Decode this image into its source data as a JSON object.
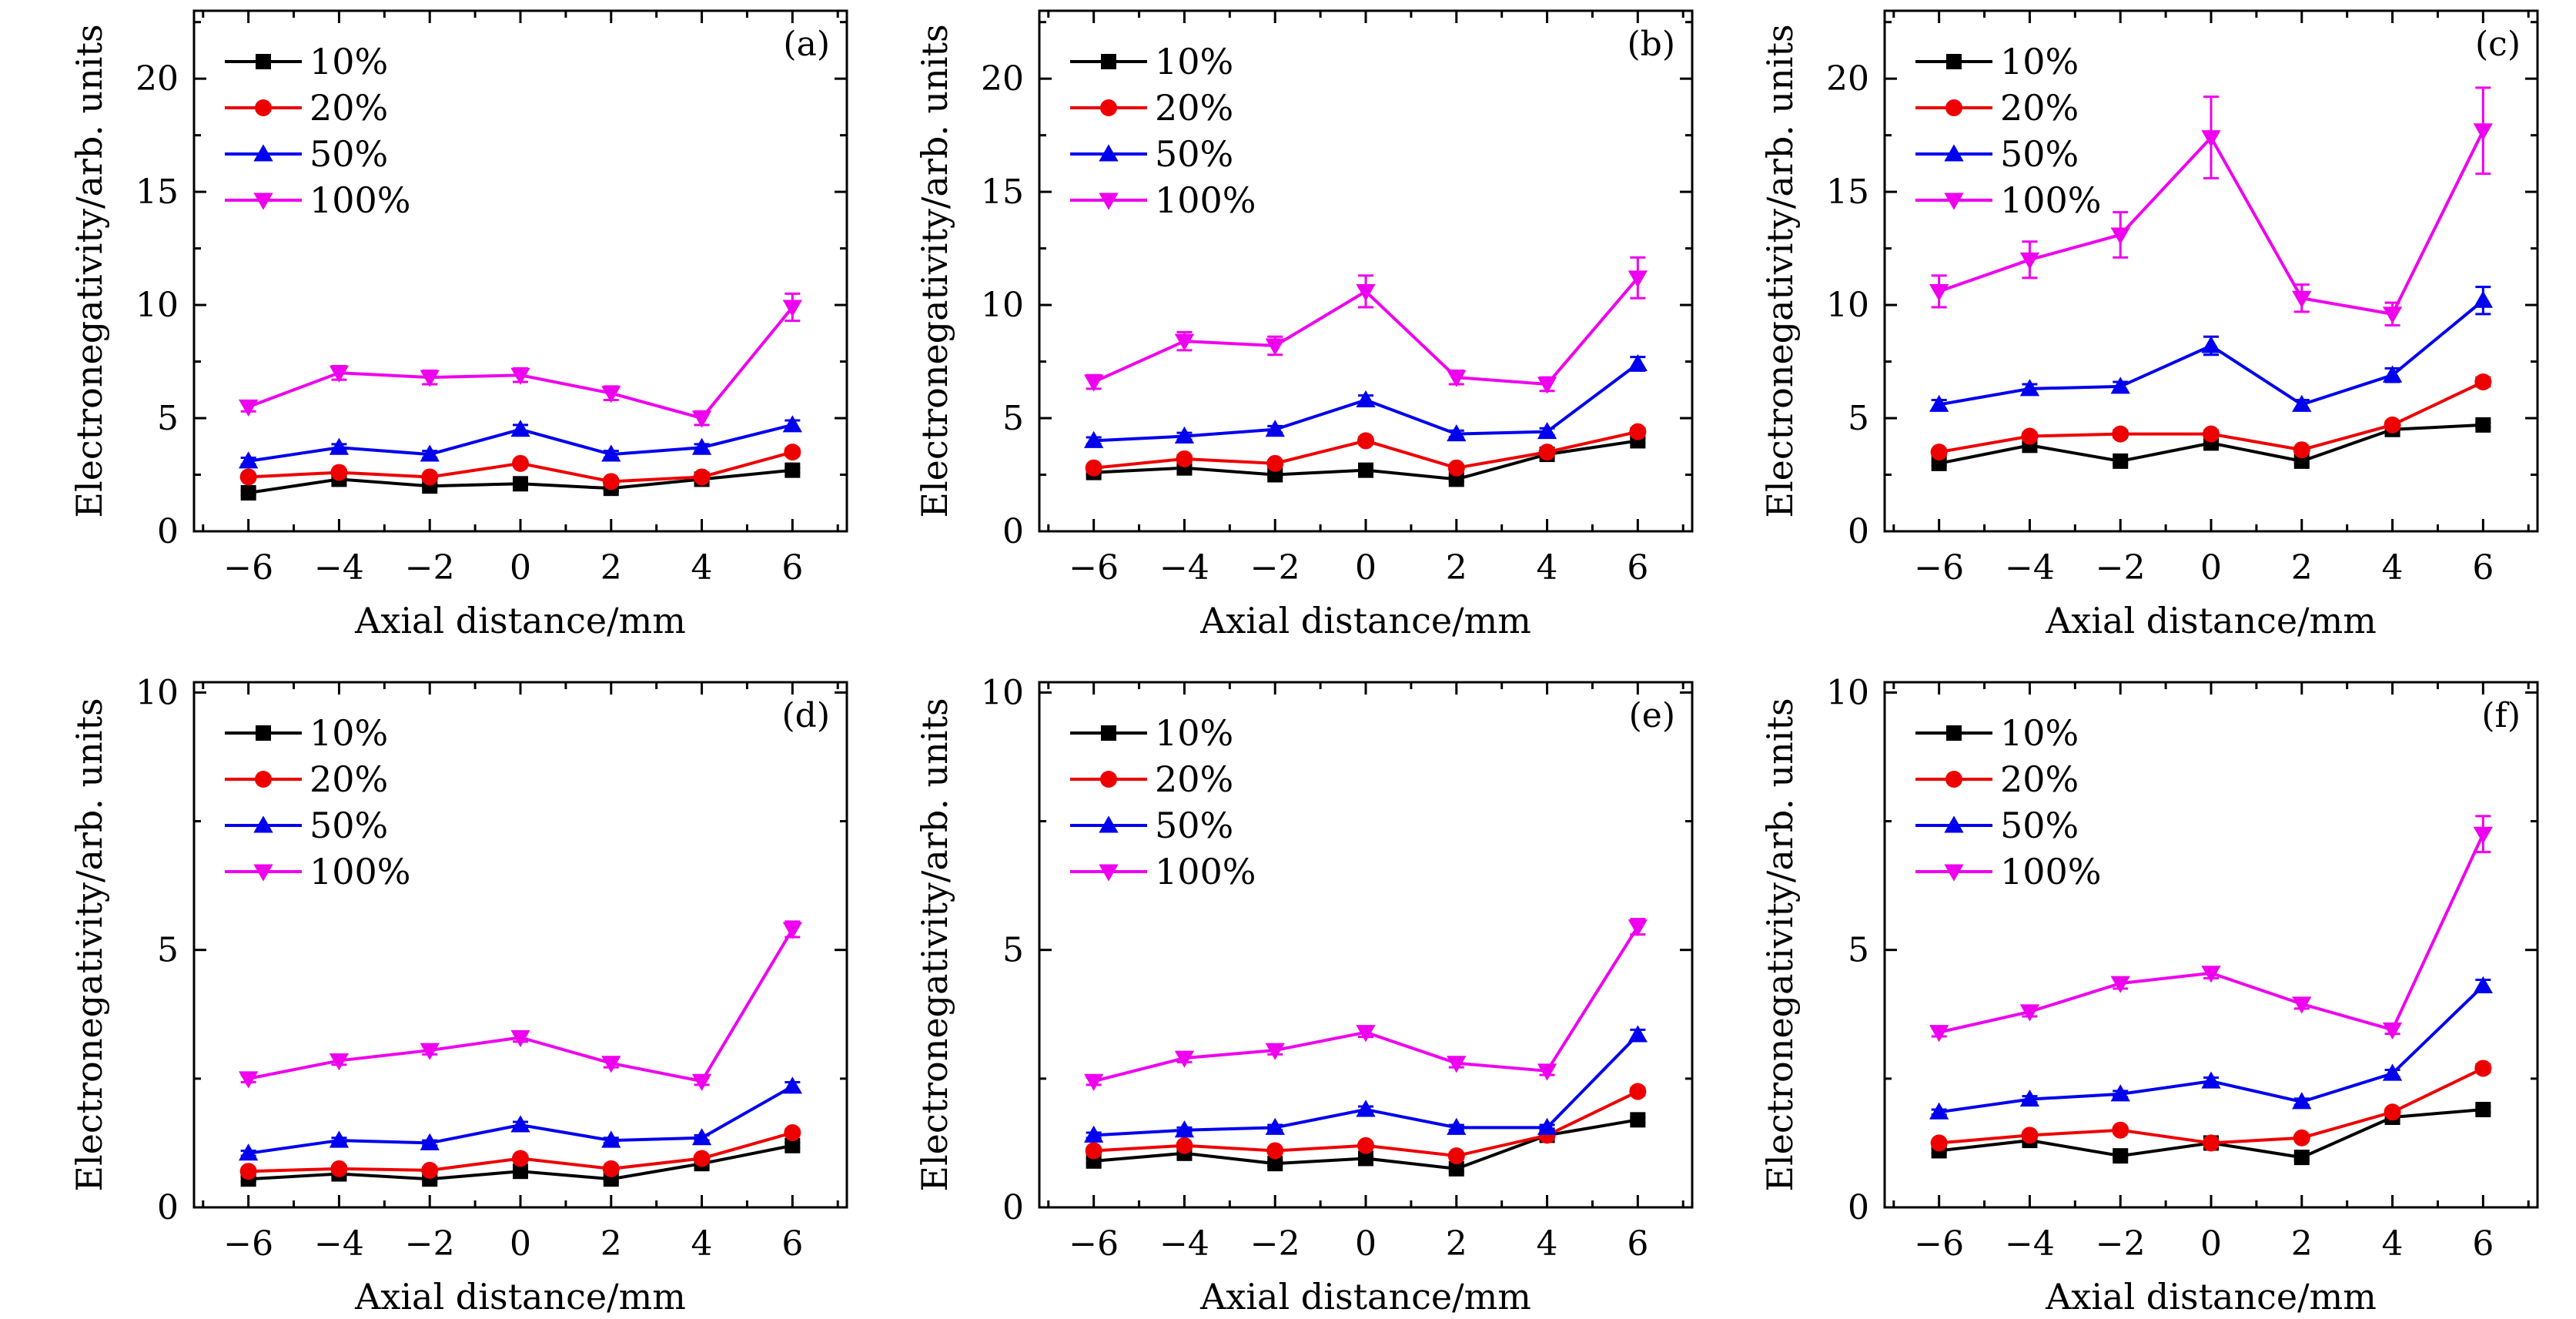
{
  "chart_data": [
    {
      "type": "line",
      "panel_label": "(a)",
      "xlabel": "Axial distance/mm",
      "ylabel": "Electronegativity/arb. units",
      "xlim": [
        -7.2,
        7.2
      ],
      "ylim": [
        0,
        23
      ],
      "x_ticks": [
        -6,
        -4,
        -2,
        0,
        2,
        4,
        6
      ],
      "y_ticks": [
        0,
        5,
        10,
        15,
        20
      ],
      "legend_position": "top-left",
      "x": [
        -6,
        -4,
        -2,
        0,
        2,
        4,
        6
      ],
      "series": [
        {
          "name": "10%",
          "color": "#000000",
          "marker": "square",
          "values": [
            1.7,
            2.3,
            2.0,
            2.1,
            1.9,
            2.3,
            2.7
          ],
          "errors": [
            0.1,
            0.1,
            0.1,
            0.1,
            0.1,
            0.1,
            0.1
          ]
        },
        {
          "name": "20%",
          "color": "#ee0000",
          "marker": "circle",
          "values": [
            2.4,
            2.6,
            2.4,
            3.0,
            2.2,
            2.4,
            3.5
          ],
          "errors": [
            0.1,
            0.1,
            0.1,
            0.1,
            0.1,
            0.1,
            0.15
          ]
        },
        {
          "name": "50%",
          "color": "#0000ee",
          "marker": "triangle-up",
          "values": [
            3.1,
            3.7,
            3.4,
            4.5,
            3.4,
            3.7,
            4.7
          ],
          "errors": [
            0.15,
            0.15,
            0.15,
            0.2,
            0.15,
            0.15,
            0.2
          ]
        },
        {
          "name": "100%",
          "color": "#ee00ee",
          "marker": "triangle-down",
          "values": [
            5.5,
            7.0,
            6.8,
            6.9,
            6.1,
            5.0,
            9.9
          ],
          "errors": [
            0.2,
            0.3,
            0.3,
            0.3,
            0.3,
            0.3,
            0.6
          ]
        }
      ]
    },
    {
      "type": "line",
      "panel_label": "(b)",
      "xlabel": "Axial distance/mm",
      "ylabel": "Electronegativity/arb. units",
      "xlim": [
        -7.2,
        7.2
      ],
      "ylim": [
        0,
        23
      ],
      "x_ticks": [
        -6,
        -4,
        -2,
        0,
        2,
        4,
        6
      ],
      "y_ticks": [
        0,
        5,
        10,
        15,
        20
      ],
      "legend_position": "top-left",
      "x": [
        -6,
        -4,
        -2,
        0,
        2,
        4,
        6
      ],
      "series": [
        {
          "name": "10%",
          "color": "#000000",
          "marker": "square",
          "values": [
            2.6,
            2.8,
            2.5,
            2.7,
            2.3,
            3.4,
            4.0
          ],
          "errors": [
            0.1,
            0.1,
            0.1,
            0.1,
            0.1,
            0.1,
            0.1
          ]
        },
        {
          "name": "20%",
          "color": "#ee0000",
          "marker": "circle",
          "values": [
            2.8,
            3.2,
            3.0,
            4.0,
            2.8,
            3.5,
            4.4
          ],
          "errors": [
            0.1,
            0.15,
            0.1,
            0.15,
            0.1,
            0.1,
            0.15
          ]
        },
        {
          "name": "50%",
          "color": "#0000ee",
          "marker": "triangle-up",
          "values": [
            4.0,
            4.2,
            4.5,
            5.8,
            4.3,
            4.4,
            7.4
          ],
          "errors": [
            0.15,
            0.15,
            0.15,
            0.2,
            0.15,
            0.15,
            0.3
          ]
        },
        {
          "name": "100%",
          "color": "#ee00ee",
          "marker": "triangle-down",
          "values": [
            6.6,
            8.4,
            8.2,
            10.6,
            6.8,
            6.5,
            11.2
          ],
          "errors": [
            0.3,
            0.4,
            0.4,
            0.7,
            0.3,
            0.3,
            0.9
          ]
        }
      ]
    },
    {
      "type": "line",
      "panel_label": "(c)",
      "xlabel": "Axial distance/mm",
      "ylabel": "Electronegativity/arb. units",
      "xlim": [
        -7.2,
        7.2
      ],
      "ylim": [
        0,
        23
      ],
      "x_ticks": [
        -6,
        -4,
        -2,
        0,
        2,
        4,
        6
      ],
      "y_ticks": [
        0,
        5,
        10,
        15,
        20
      ],
      "legend_position": "top-left",
      "x": [
        -6,
        -4,
        -2,
        0,
        2,
        4,
        6
      ],
      "series": [
        {
          "name": "10%",
          "color": "#000000",
          "marker": "square",
          "values": [
            3.0,
            3.8,
            3.1,
            3.9,
            3.1,
            4.5,
            4.7
          ],
          "errors": [
            0.1,
            0.1,
            0.1,
            0.1,
            0.1,
            0.1,
            0.1
          ]
        },
        {
          "name": "20%",
          "color": "#ee0000",
          "marker": "circle",
          "values": [
            3.5,
            4.2,
            4.3,
            4.3,
            3.6,
            4.7,
            6.6
          ],
          "errors": [
            0.1,
            0.15,
            0.15,
            0.15,
            0.1,
            0.15,
            0.2
          ]
        },
        {
          "name": "50%",
          "color": "#0000ee",
          "marker": "triangle-up",
          "values": [
            5.6,
            6.3,
            6.4,
            8.2,
            5.6,
            6.9,
            10.2
          ],
          "errors": [
            0.2,
            0.2,
            0.2,
            0.4,
            0.2,
            0.3,
            0.6
          ]
        },
        {
          "name": "100%",
          "color": "#ee00ee",
          "marker": "triangle-down",
          "values": [
            10.6,
            12.0,
            13.1,
            17.4,
            10.3,
            9.6,
            17.7
          ],
          "errors": [
            0.7,
            0.8,
            1.0,
            1.8,
            0.6,
            0.5,
            1.9
          ]
        }
      ]
    },
    {
      "type": "line",
      "panel_label": "(d)",
      "xlabel": "Axial distance/mm",
      "ylabel": "Electronegativity/arb. units",
      "xlim": [
        -7.2,
        7.2
      ],
      "ylim": [
        0,
        10.2
      ],
      "x_ticks": [
        -6,
        -4,
        -2,
        0,
        2,
        4,
        6
      ],
      "y_ticks": [
        0,
        5,
        10
      ],
      "legend_position": "top-left",
      "x": [
        -6,
        -4,
        -2,
        0,
        2,
        4,
        6
      ],
      "series": [
        {
          "name": "10%",
          "color": "#000000",
          "marker": "square",
          "values": [
            0.55,
            0.65,
            0.55,
            0.7,
            0.55,
            0.85,
            1.2
          ],
          "errors": [
            0.05,
            0.05,
            0.05,
            0.05,
            0.05,
            0.05,
            0.05
          ]
        },
        {
          "name": "20%",
          "color": "#ee0000",
          "marker": "circle",
          "values": [
            0.7,
            0.75,
            0.72,
            0.95,
            0.75,
            0.95,
            1.45
          ],
          "errors": [
            0.05,
            0.05,
            0.05,
            0.05,
            0.05,
            0.05,
            0.06
          ]
        },
        {
          "name": "50%",
          "color": "#0000ee",
          "marker": "triangle-up",
          "values": [
            1.05,
            1.3,
            1.25,
            1.6,
            1.3,
            1.35,
            2.35
          ],
          "errors": [
            0.05,
            0.05,
            0.05,
            0.06,
            0.05,
            0.05,
            0.08
          ]
        },
        {
          "name": "100%",
          "color": "#ee00ee",
          "marker": "triangle-down",
          "values": [
            2.5,
            2.85,
            3.05,
            3.3,
            2.8,
            2.45,
            5.4
          ],
          "errors": [
            0.07,
            0.08,
            0.08,
            0.08,
            0.08,
            0.07,
            0.15
          ]
        }
      ]
    },
    {
      "type": "line",
      "panel_label": "(e)",
      "xlabel": "Axial distance/mm",
      "ylabel": "Electronegativity/arb. units",
      "xlim": [
        -7.2,
        7.2
      ],
      "ylim": [
        0,
        10.2
      ],
      "x_ticks": [
        -6,
        -4,
        -2,
        0,
        2,
        4,
        6
      ],
      "y_ticks": [
        0,
        5,
        10
      ],
      "legend_position": "top-left",
      "x": [
        -6,
        -4,
        -2,
        0,
        2,
        4,
        6
      ],
      "series": [
        {
          "name": "10%",
          "color": "#000000",
          "marker": "square",
          "values": [
            0.9,
            1.05,
            0.85,
            0.95,
            0.75,
            1.4,
            1.7
          ],
          "errors": [
            0.05,
            0.05,
            0.05,
            0.05,
            0.05,
            0.05,
            0.05
          ]
        },
        {
          "name": "20%",
          "color": "#ee0000",
          "marker": "circle",
          "values": [
            1.1,
            1.2,
            1.1,
            1.2,
            1.0,
            1.4,
            2.25
          ],
          "errors": [
            0.05,
            0.05,
            0.05,
            0.05,
            0.05,
            0.05,
            0.07
          ]
        },
        {
          "name": "50%",
          "color": "#0000ee",
          "marker": "triangle-up",
          "values": [
            1.4,
            1.5,
            1.55,
            1.9,
            1.55,
            1.55,
            3.35
          ],
          "errors": [
            0.05,
            0.05,
            0.05,
            0.06,
            0.05,
            0.05,
            0.1
          ]
        },
        {
          "name": "100%",
          "color": "#ee00ee",
          "marker": "triangle-down",
          "values": [
            2.45,
            2.9,
            3.05,
            3.4,
            2.8,
            2.65,
            5.45
          ],
          "errors": [
            0.07,
            0.08,
            0.08,
            0.09,
            0.08,
            0.08,
            0.15
          ]
        }
      ]
    },
    {
      "type": "line",
      "panel_label": "(f)",
      "xlabel": "Axial distance/mm",
      "ylabel": "Electronegativity/arb. units",
      "xlim": [
        -7.2,
        7.2
      ],
      "ylim": [
        0,
        10.2
      ],
      "x_ticks": [
        -6,
        -4,
        -2,
        0,
        2,
        4,
        6
      ],
      "y_ticks": [
        0,
        5,
        10
      ],
      "legend_position": "top-left",
      "x": [
        -6,
        -4,
        -2,
        0,
        2,
        4,
        6
      ],
      "series": [
        {
          "name": "10%",
          "color": "#000000",
          "marker": "square",
          "values": [
            1.1,
            1.3,
            1.0,
            1.25,
            0.97,
            1.75,
            1.9
          ],
          "errors": [
            0.05,
            0.05,
            0.05,
            0.05,
            0.05,
            0.05,
            0.05
          ]
        },
        {
          "name": "20%",
          "color": "#ee0000",
          "marker": "circle",
          "values": [
            1.25,
            1.4,
            1.5,
            1.25,
            1.35,
            1.85,
            2.7
          ],
          "errors": [
            0.05,
            0.05,
            0.05,
            0.05,
            0.05,
            0.06,
            0.08
          ]
        },
        {
          "name": "50%",
          "color": "#0000ee",
          "marker": "triangle-up",
          "values": [
            1.85,
            2.1,
            2.2,
            2.45,
            2.05,
            2.6,
            4.3
          ],
          "errors": [
            0.05,
            0.06,
            0.06,
            0.07,
            0.06,
            0.07,
            0.12
          ]
        },
        {
          "name": "100%",
          "color": "#ee00ee",
          "marker": "triangle-down",
          "values": [
            3.4,
            3.8,
            4.35,
            4.55,
            3.95,
            3.45,
            7.25
          ],
          "errors": [
            0.08,
            0.09,
            0.1,
            0.1,
            0.09,
            0.08,
            0.35
          ]
        }
      ]
    }
  ]
}
